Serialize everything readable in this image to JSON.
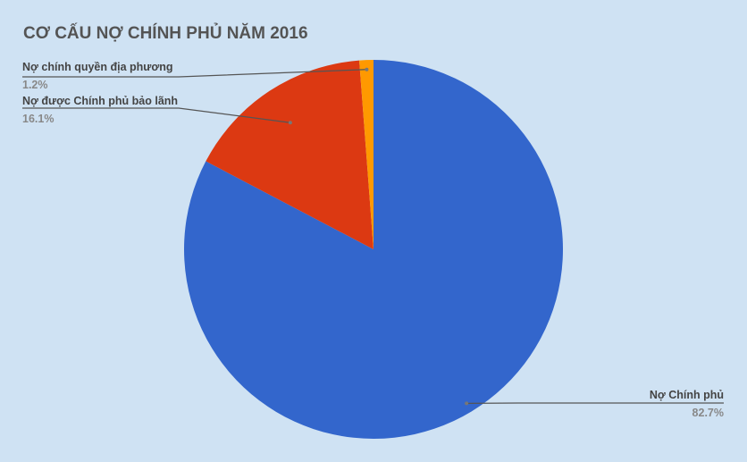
{
  "chart_data": {
    "type": "pie",
    "title": "CƠ CẤU NỢ CHÍNH PHỦ NĂM 2016",
    "slices": [
      {
        "label": "Nợ Chính phủ",
        "value": 82.7,
        "value_label": "82.7%",
        "color": "#3366cc"
      },
      {
        "label": "Nợ được Chính phủ bảo lãnh",
        "value": 16.1,
        "value_label": "16.1%",
        "color": "#dc3912"
      },
      {
        "label": "Nợ chính quyền địa phương",
        "value": 1.2,
        "value_label": "1.2%",
        "color": "#ff9900"
      }
    ],
    "start_angle": "top",
    "direction": "clockwise",
    "legend": "labeled callouts",
    "background": "#cfe2f3"
  }
}
